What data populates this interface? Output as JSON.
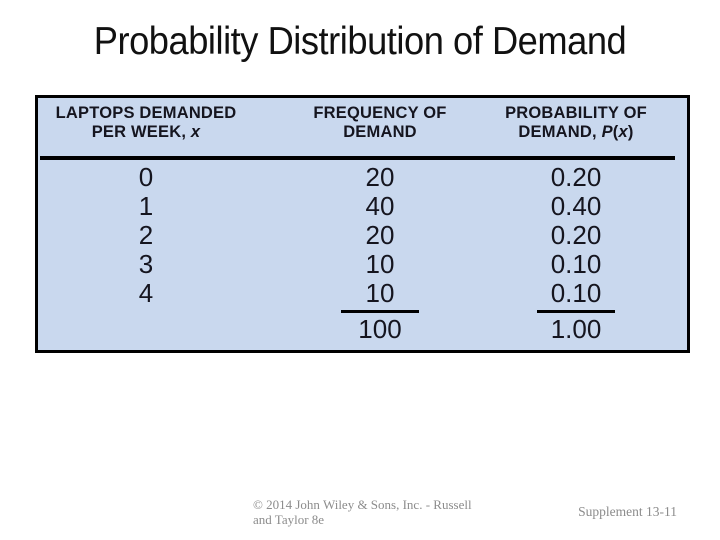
{
  "slide": {
    "title": "Probability Distribution of Demand",
    "colors": {
      "table_background": "#c9d8ee",
      "rule_color": "#000000",
      "text_color": "#15151f",
      "footer_color": "#8c8c8c"
    },
    "footer": {
      "copyright_line1": "© 2014 John Wiley & Sons, Inc. - Russell",
      "copyright_line2": "and Taylor 8e",
      "page_label": "Supplement 13-11"
    }
  },
  "table": {
    "col1": {
      "header_line1": "LAPTOPS DEMANDED",
      "header_line2_prefix": "PER WEEK, ",
      "header_italic_x": "x",
      "values": [
        "0",
        "1",
        "2",
        "3",
        "4"
      ]
    },
    "col2": {
      "header_line1": "FREQUENCY OF",
      "header_line2": "DEMAND",
      "values": [
        "20",
        "40",
        "20",
        "10",
        "10"
      ],
      "total": "100"
    },
    "col3": {
      "header_line1": "PROBABILITY OF",
      "header_line2_prefix": "DEMAND, ",
      "header_italic_p": "P",
      "paren_open": "(",
      "header_italic_x": "x",
      "paren_close": ")",
      "values": [
        "0.20",
        "0.40",
        "0.20",
        "0.10",
        "0.10"
      ],
      "total": "1.00"
    }
  },
  "chart_data": {
    "type": "table",
    "title": "Probability Distribution of Demand",
    "columns": [
      "LAPTOPS DEMANDED PER WEEK, x",
      "FREQUENCY OF DEMAND",
      "PROBABILITY OF DEMAND, P(x)"
    ],
    "rows": [
      [
        0,
        20,
        0.2
      ],
      [
        1,
        40,
        0.4
      ],
      [
        2,
        20,
        0.2
      ],
      [
        3,
        10,
        0.1
      ],
      [
        4,
        10,
        0.1
      ]
    ],
    "totals": {
      "frequency": 100,
      "probability": 1.0
    }
  }
}
